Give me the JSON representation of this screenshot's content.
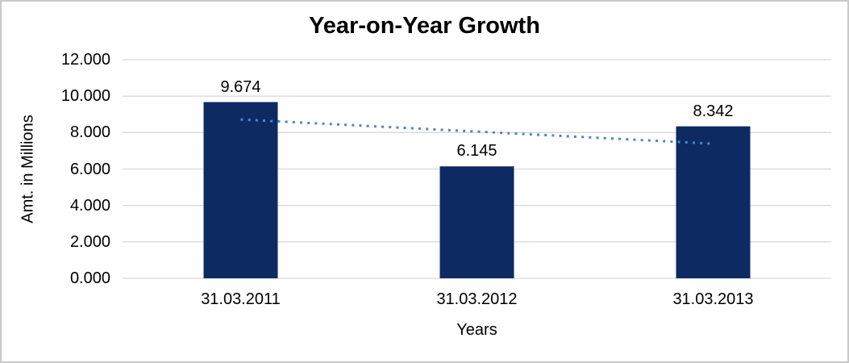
{
  "window": {
    "background": "#ffffff",
    "frame_border_color": "#c9c9c9"
  },
  "chart_data": {
    "type": "bar",
    "title": "Year-on-Year Growth",
    "xlabel": "Years",
    "ylabel": "Amt. in Millions",
    "categories": [
      "31.03.2011",
      "31.03.2012",
      "31.03.2013"
    ],
    "values": [
      9.674,
      6.145,
      8.342
    ],
    "value_labels": [
      "9.674",
      "6.145",
      "8.342"
    ],
    "y_ticks": [
      {
        "value": 12,
        "label": "12.000"
      },
      {
        "value": 10,
        "label": "10.000"
      },
      {
        "value": 8,
        "label": "8.000"
      },
      {
        "value": 6,
        "label": "6.000"
      },
      {
        "value": 4,
        "label": "4.000"
      },
      {
        "value": 2,
        "label": "2.000"
      },
      {
        "value": 0,
        "label": "0.000"
      }
    ],
    "ylim": [
      0,
      12
    ],
    "grid": "horizontal",
    "legend": "none",
    "colors": {
      "bar": "#0d2a63",
      "gridline": "#d9d9d9",
      "axis_line": "#d9d9d9",
      "trendline": "#4e86c6",
      "text": "#000000"
    },
    "trendline": {
      "type": "linear",
      "style": "dotted",
      "fitted_values": [
        8.72,
        8.054,
        7.387
      ]
    }
  }
}
